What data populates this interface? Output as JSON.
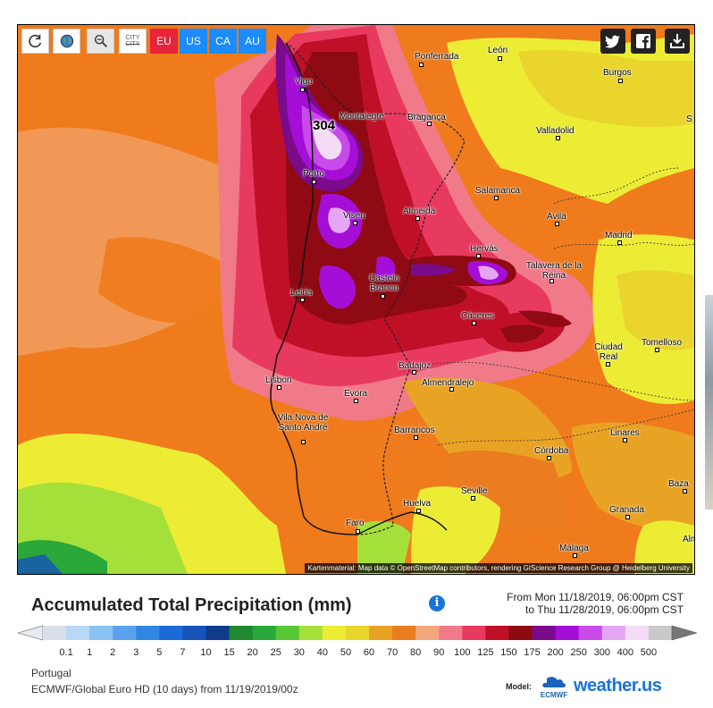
{
  "toolbar": {
    "reset_icon": "reload-icon",
    "globe_icon": "globe-icon",
    "zoom_icon": "zoom-out-icon",
    "city_label_top": "CITY",
    "city_label_bottom": "CITY",
    "regions": [
      "EU",
      "US",
      "CA",
      "AU"
    ],
    "region_colors": [
      "#e8233a",
      "#1a8cff",
      "#1a8cff",
      "#1a8cff"
    ],
    "share_icons": [
      "twitter-icon",
      "facebook-icon",
      "download-icon"
    ]
  },
  "map": {
    "max_value": "304",
    "attribution": "Kartenmaterial: Map data © OpenStreetMap contributors, rendering GIScience Research Group @ Heidelberg University",
    "cities": [
      {
        "name": "León"
      },
      {
        "name": "Ponferrada"
      },
      {
        "name": "Vigo"
      },
      {
        "name": "Burgos"
      },
      {
        "name": "Montalegre"
      },
      {
        "name": "Bragança"
      },
      {
        "name": "Valladolid"
      },
      {
        "name": "Porto"
      },
      {
        "name": "Salamanca"
      },
      {
        "name": "Viseu"
      },
      {
        "name": "Almeida"
      },
      {
        "name": "Ávila"
      },
      {
        "name": "Madrid"
      },
      {
        "name": "Hervás"
      },
      {
        "name": "Talavera de la Reina"
      },
      {
        "name": "Leiria"
      },
      {
        "name": "Castelo Branco"
      },
      {
        "name": "Cáceres"
      },
      {
        "name": "Ciudad Real"
      },
      {
        "name": "Tomelloso"
      },
      {
        "name": "Badajoz"
      },
      {
        "name": "Lisbon"
      },
      {
        "name": "Almendralejo"
      },
      {
        "name": "Evora"
      },
      {
        "name": "Vila Nova de Santo André"
      },
      {
        "name": "Barrancos"
      },
      {
        "name": "Linares"
      },
      {
        "name": "Córdoba"
      },
      {
        "name": "Baza"
      },
      {
        "name": "Seville"
      },
      {
        "name": "Huelva"
      },
      {
        "name": "Granada"
      },
      {
        "name": "Faro"
      },
      {
        "name": "Málaga"
      },
      {
        "name": "Alm"
      },
      {
        "name": "S"
      }
    ]
  },
  "legend": {
    "title": "Accumulated Total Precipitation (mm)",
    "from": "From Mon 11/18/2019, 06:00pm CST",
    "to": "to Thu 11/28/2019, 06:00pm CST",
    "ticks": [
      "0.1",
      "1",
      "2",
      "3",
      "5",
      "7",
      "10",
      "15",
      "20",
      "25",
      "30",
      "40",
      "50",
      "60",
      "70",
      "80",
      "90",
      "100",
      "125",
      "150",
      "175",
      "200",
      "250",
      "300",
      "400",
      "500"
    ],
    "colors": [
      "#d9dfe9",
      "#b8d8f5",
      "#8cc2f2",
      "#5aa3ec",
      "#2f86e3",
      "#1c6ad8",
      "#1553b8",
      "#103a8a",
      "#1f8a2f",
      "#2aa83a",
      "#57c735",
      "#a5e03a",
      "#ecec35",
      "#e9d52c",
      "#e9a324",
      "#ec7c20",
      "#f2a87a",
      "#f07a88",
      "#e83a5f",
      "#c01027",
      "#8f0a12",
      "#7a0b8a",
      "#a40ed6",
      "#c84ae8",
      "#e4a6f3",
      "#f4dcf7",
      "#c9c9c9"
    ]
  },
  "footer": {
    "region": "Portugal",
    "model": "ECMWF/Global Euro HD (10 days) from 11/19/2019/00z",
    "model_label": "Model:",
    "ecmwf_text": "ECMWF",
    "brand_main": "weather.",
    "brand_us": "us"
  }
}
